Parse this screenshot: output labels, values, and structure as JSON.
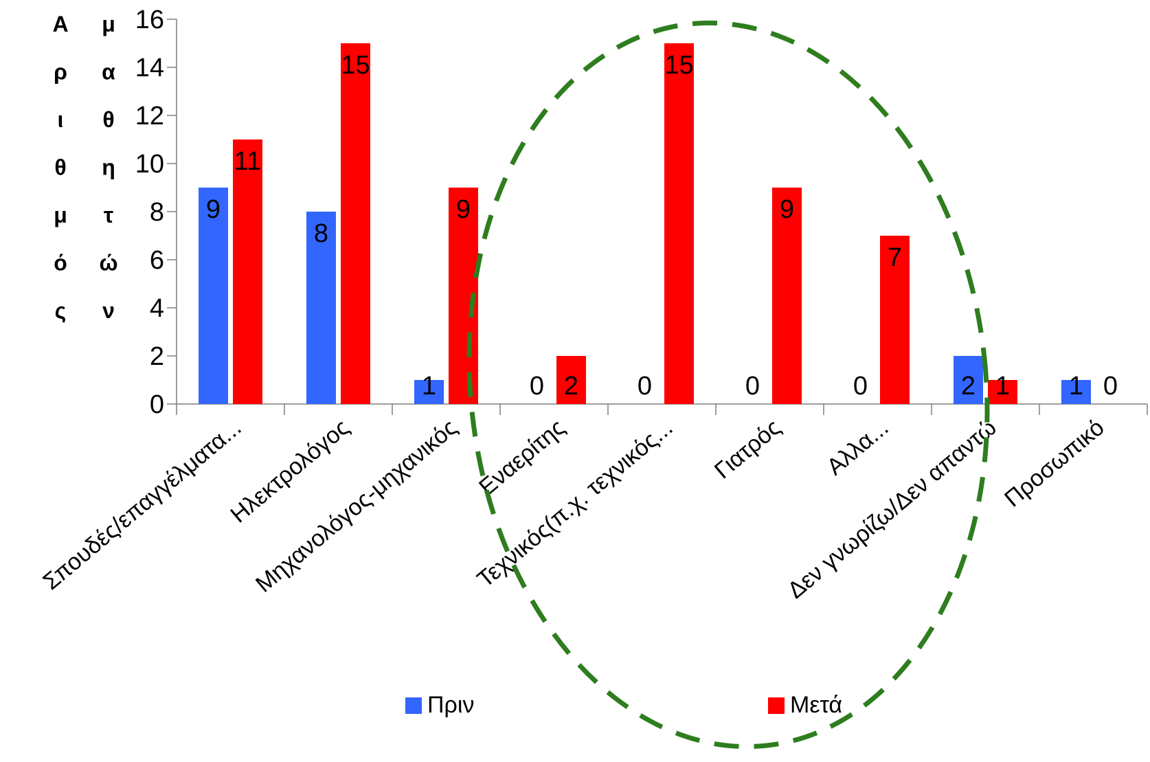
{
  "chart_data": {
    "type": "bar",
    "title": "",
    "ylabel_columns": [
      [
        "Α",
        "ρ",
        "ι",
        "θ",
        "μ",
        "ό",
        "ς"
      ],
      [
        "μ",
        "α",
        "θ",
        "η",
        "τ",
        "ώ",
        "ν"
      ]
    ],
    "ylim": [
      0,
      16
    ],
    "yticks": [
      0,
      2,
      4,
      6,
      8,
      10,
      12,
      14,
      16
    ],
    "categories": [
      "Σπουδές/επαγγέλματα...",
      "Ηλεκτρολόγος",
      "Μηχανολόγος-μηχανικός",
      "Εναερίτης",
      "Τεχνικός(π.χ. τεχνικός...",
      "Γιατρός",
      "Αλλα...",
      "Δεν γνωρίζω/Δεν απαντώ",
      "Προσωπικό"
    ],
    "series": [
      {
        "name": "Πριν",
        "color": "#3366ff",
        "values": [
          9,
          8,
          1,
          0,
          0,
          0,
          0,
          2,
          1
        ]
      },
      {
        "name": "Μετά",
        "color": "#ff0000",
        "values": [
          11,
          15,
          9,
          2,
          15,
          9,
          7,
          1,
          0
        ]
      }
    ],
    "legend_position": "bottom",
    "grid": false,
    "annotation": {
      "shape": "dashed-ellipse",
      "color": "#2e7d1e"
    }
  }
}
